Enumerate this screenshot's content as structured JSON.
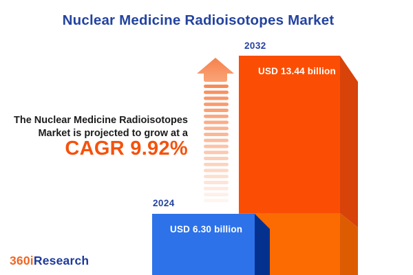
{
  "title": "Nuclear Medicine Radioisotopes Market",
  "description": {
    "line1": "The Nuclear Medicine Radioisotopes",
    "line2": "Market is projected to grow at a",
    "cagr": "CAGR 9.92%"
  },
  "chart_data": {
    "type": "bar",
    "title": "Nuclear Medicine Radioisotopes Market",
    "categories": [
      "2024",
      "2032"
    ],
    "values": [
      6.3,
      13.44
    ],
    "unit": "USD billion",
    "value_labels": [
      "USD 6.30 billion",
      "USD 13.44 billion"
    ],
    "cagr": "9.92%",
    "legend": "none",
    "grid": "off",
    "series_colors": [
      "#2E72E9",
      "#FB4E04"
    ]
  },
  "logo": {
    "prefix": "360i",
    "suffix": "Research"
  },
  "arrow": {
    "stripe_count": 20
  },
  "colors": {
    "title_blue": "#2343A0",
    "text_dark": "#1b1b1b",
    "accent_orange": "#F4520D",
    "bar2032_face_upper": "#FB4E04",
    "bar2032_face_lower": "#FB6B01",
    "bar2032_side_upper": "#D8430A",
    "bar2032_side_lower": "#DD5C02",
    "bar2024_face": "#2E72E9",
    "bar2024_side": "#05318E",
    "arrow_head_top": "#F6814C",
    "arrow_head_bottom": "#F9A478",
    "arrow_stripe": "#F78C59",
    "logo_orange": "#F26522",
    "logo_blue": "#1E3A9B"
  }
}
